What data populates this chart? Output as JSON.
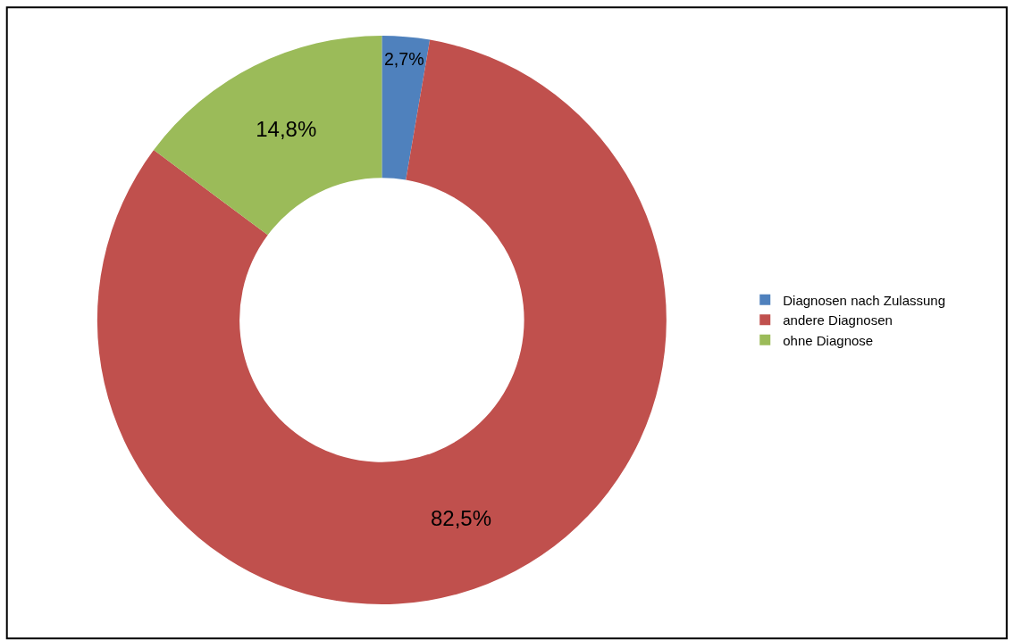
{
  "chart_data": {
    "type": "donut",
    "categories": [
      "Diagnosen nach Zulassung",
      "andere Diagnosen",
      "ohne Diagnose"
    ],
    "values": [
      2.7,
      82.5,
      14.8
    ],
    "colors": [
      "#4f81bd",
      "#c0504d",
      "#9bbb59"
    ],
    "value_labels": [
      "2,7%",
      "82,5%",
      "14,8%"
    ],
    "legend": "right"
  }
}
